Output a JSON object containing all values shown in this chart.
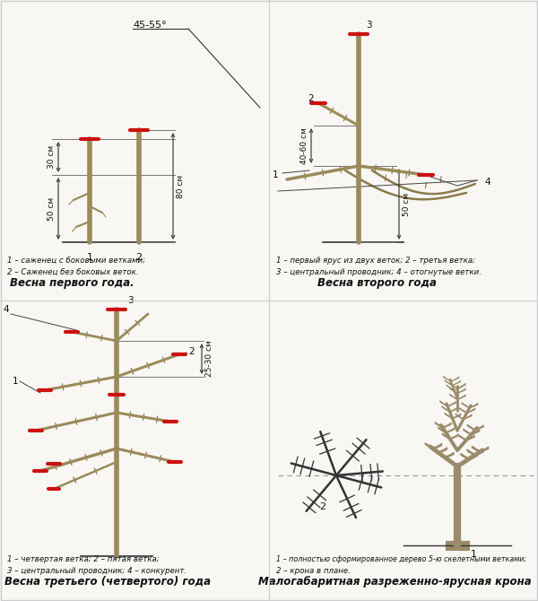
{
  "bg_color": "#f8f7f4",
  "fig_width": 6.0,
  "fig_height": 6.7,
  "red_color": "#cc1111",
  "brown_color": "#9B8B5A",
  "brown2": "#8B7B4A",
  "line_color": "#333333",
  "dim_color": "#444444",
  "text_color": "#111111",
  "panel1_cap1": "1 – саженец с боковыми ветками;",
  "panel1_cap2": "2 – Саженец без боковых веток.",
  "panel1_title": "Весна первого года.",
  "panel2_cap1": "1 – первый ярус из двух веток; 2 – третья ветка;",
  "panel2_cap2": "3 – центральный проводник; 4 – отогнутые ветки.",
  "panel2_title": "Весна второго года",
  "panel3_cap1": "1 – четвертая ветка; 2 – пятая ветка;",
  "panel3_cap2": "3 – центральный проводник; 4 – конкурент.",
  "panel3_title": "Весна третьего (четвертого) года",
  "panel4_cap1": "1 – полностью сформированное дерево 5-ю скелетными ветками;",
  "panel4_cap2": "2 – крона в плане.",
  "panel4_title": "Малогабаритная разреженно-ярусная крона",
  "angle_label": "45-55°",
  "dim_30": "30 см",
  "dim_50": "50 см",
  "dim_80": "80 см",
  "dim_4060": "40-60 см",
  "dim_2530": "25-30 см"
}
